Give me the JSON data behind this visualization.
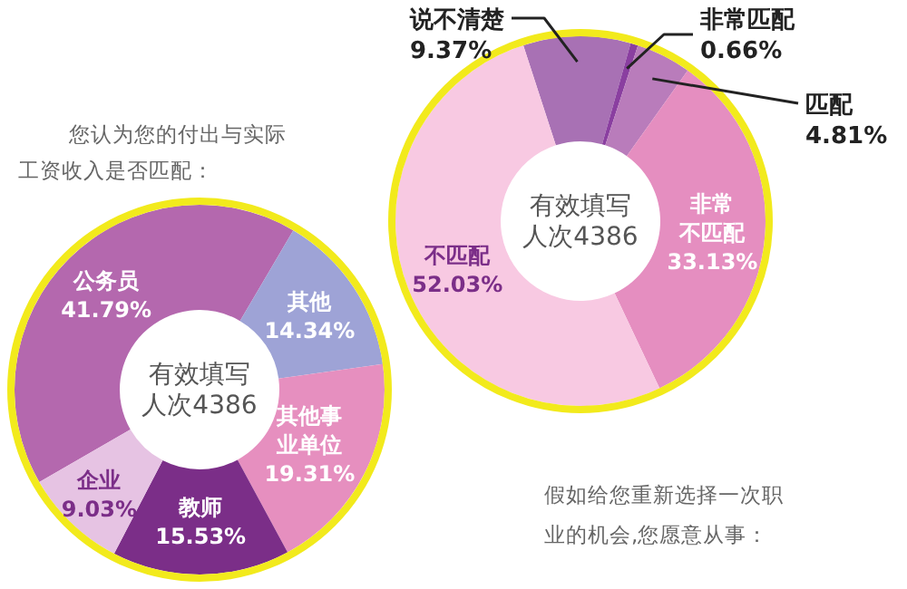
{
  "chart_data": [
    {
      "type": "donut",
      "title": "假如给您重新选择一次职业的机会,您愿意从事：",
      "categories": [
        "公务员",
        "其他",
        "其他事业单位",
        "教师",
        "企业"
      ],
      "values": [
        41.79,
        14.34,
        19.31,
        15.53,
        9.03
      ],
      "colors": [
        "#b468ae",
        "#9ea3d6",
        "#e68fbf",
        "#7b2e88",
        "#e6c3e3"
      ],
      "value_labels": [
        "41.79%",
        "14.34%",
        "19.31%",
        "15.53%",
        "9.03%"
      ],
      "annotations": [
        "有效填写人次4386"
      ]
    },
    {
      "type": "donut",
      "title": "您认为您的付出与实际工资收入是否匹配：",
      "categories": [
        "说不清楚",
        "非常匹配",
        "匹配",
        "非常不匹配",
        "不匹配"
      ],
      "values": [
        9.37,
        0.66,
        4.81,
        33.13,
        52.03
      ],
      "colors": [
        "#a871b4",
        "#8a3fa0",
        "#b97cbb",
        "#e58ec0",
        "#f8c9e2"
      ],
      "value_labels": [
        "9.37%",
        "0.66%",
        "4.81%",
        "33.13%",
        "52.03%"
      ],
      "annotations": [
        "有效填写人次4386"
      ]
    }
  ]
}
